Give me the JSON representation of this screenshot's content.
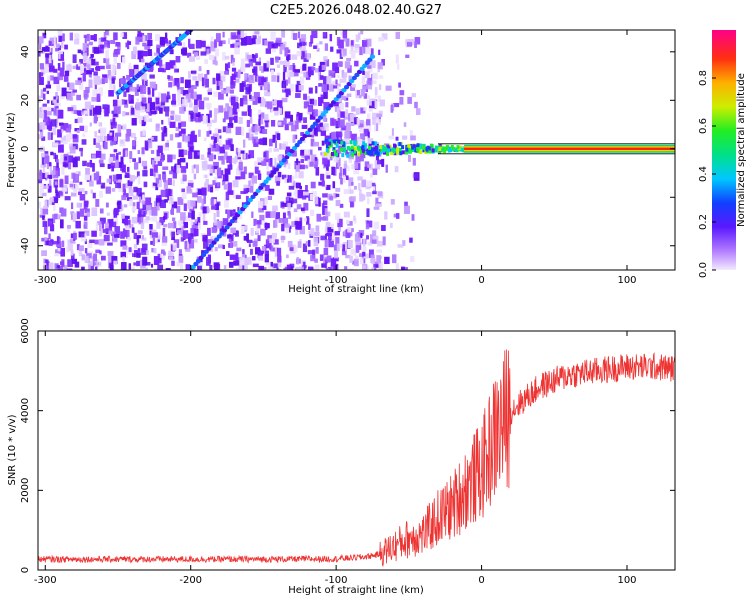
{
  "title": "C2E5.2026.048.02.40.G27",
  "chart_data": [
    {
      "type": "heatmap",
      "id": "spectrogram",
      "xlabel": "Height of straight line (km)",
      "ylabel": "Frequency (Hz)",
      "xlim": [
        -305,
        133
      ],
      "ylim": [
        -50,
        49
      ],
      "xticks": [
        -300,
        -200,
        -100,
        0,
        100
      ],
      "yticks": [
        -40,
        -20,
        0,
        20,
        40
      ],
      "features": {
        "noise_extent_km": [
          -305,
          -70
        ],
        "diagonal_tracks": [
          {
            "from": [
              -200,
              -50
            ],
            "to": [
              -75,
              38
            ]
          },
          {
            "from": [
              -250,
              23
            ],
            "to": [
              -200,
              49
            ]
          }
        ],
        "carrier_line": {
          "frequency_hz": 0,
          "from_km": -110,
          "to_km": 133
        }
      },
      "colorbar": {
        "label": "Normalized spectral amplitude",
        "range": [
          0.0,
          1.0
        ],
        "ticks": [
          0.0,
          0.2,
          0.4,
          0.6,
          0.8
        ]
      }
    },
    {
      "type": "line",
      "id": "snr",
      "xlabel": "Height of straight line (km)",
      "ylabel": "SNR (10 * v/v)",
      "xlim": [
        -305,
        133
      ],
      "ylim": [
        0,
        6000
      ],
      "xticks": [
        -300,
        -200,
        -100,
        0,
        100
      ],
      "yticks": [
        0,
        2000,
        4000,
        6000
      ],
      "series": [
        {
          "name": "SNR",
          "color": "#ee3333",
          "x": [
            -305,
            -250,
            -200,
            -150,
            -100,
            -80,
            -70,
            -60,
            -50,
            -40,
            -30,
            -20,
            -10,
            0,
            10,
            20,
            30,
            40,
            60,
            80,
            100,
            120,
            133
          ],
          "y": [
            270,
            270,
            270,
            270,
            280,
            330,
            400,
            600,
            800,
            900,
            1300,
            1600,
            2100,
            2500,
            3400,
            4000,
            4300,
            4600,
            4900,
            5000,
            5100,
            5100,
            5050
          ]
        }
      ]
    }
  ]
}
